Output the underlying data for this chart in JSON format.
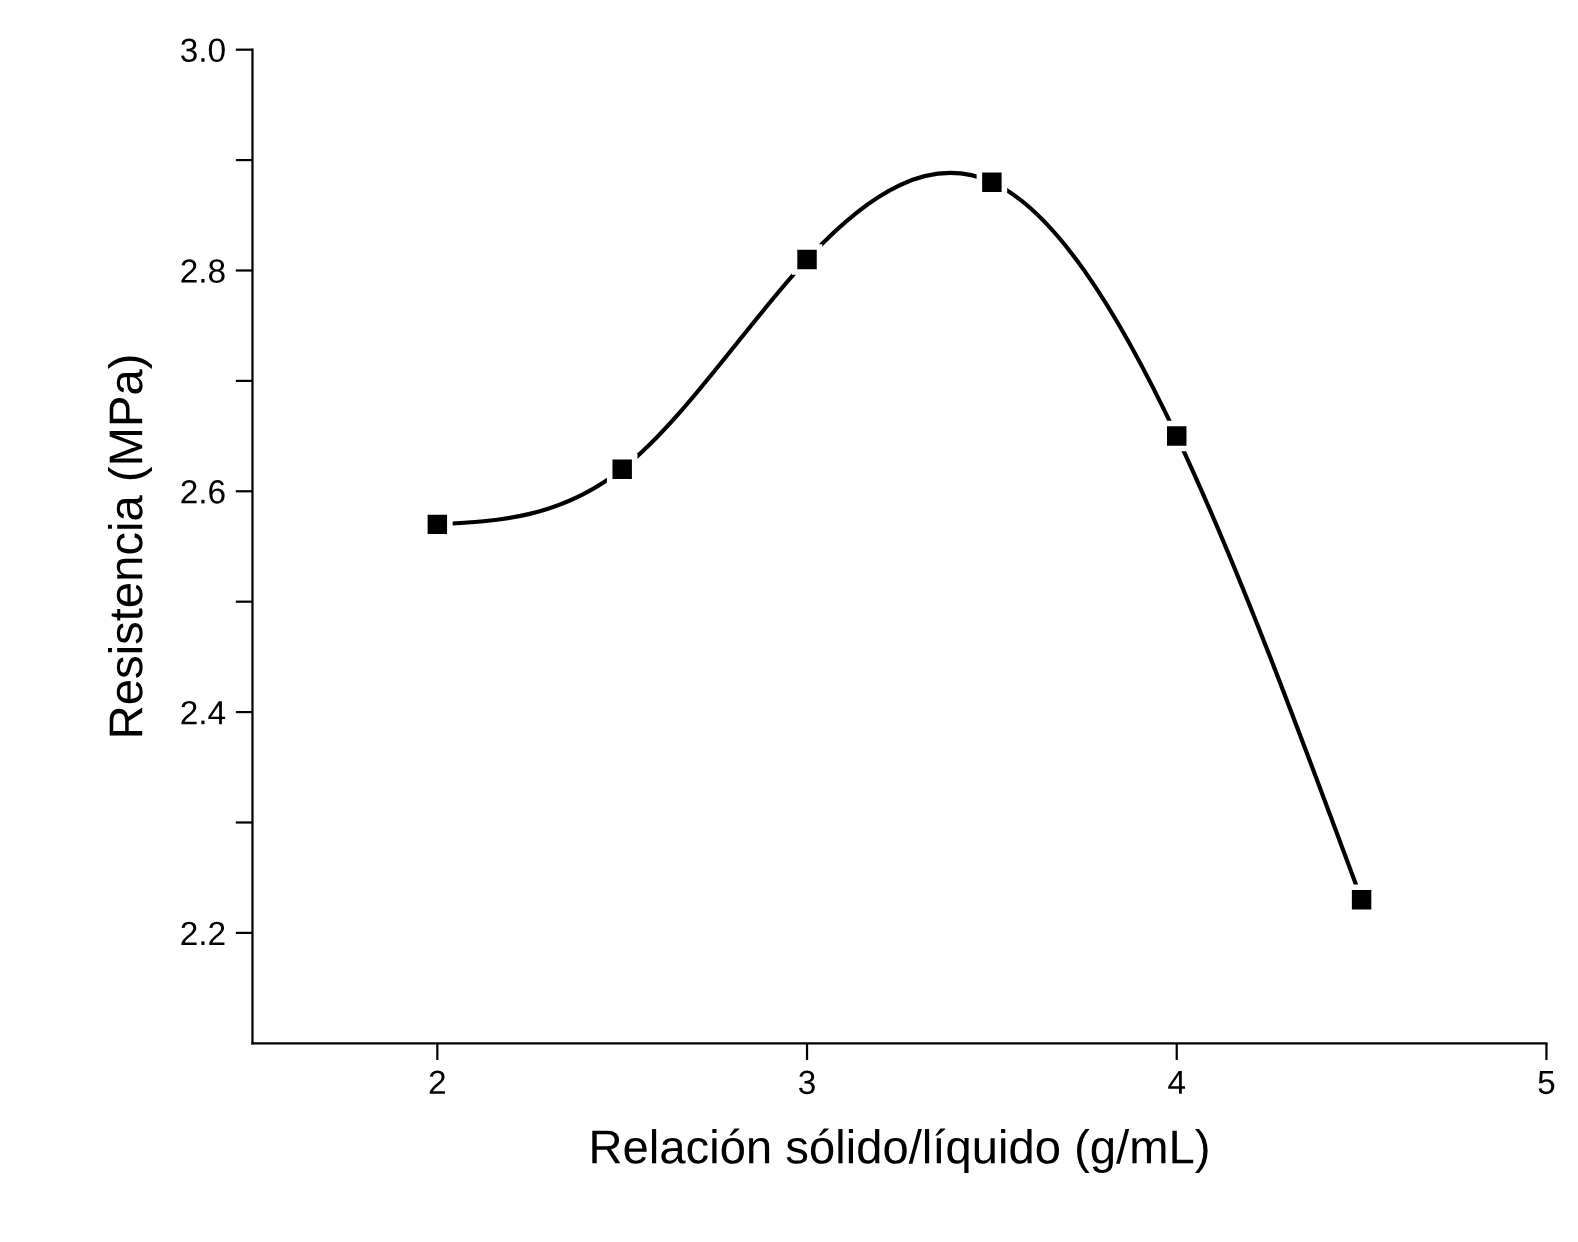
{
  "chart_data": {
    "type": "line",
    "xlabel": "Relación sólido/líquido (g/mL)",
    "ylabel": "Resistencia (MPa)",
    "x": [
      2,
      2.5,
      3,
      3.5,
      4,
      4.5
    ],
    "series": [
      {
        "color": "#000000",
        "values": [
          2.57,
          2.62,
          2.81,
          2.88,
          2.65,
          2.23
        ]
      }
    ],
    "marker": "square",
    "line_style": "solid",
    "grid": false,
    "legend": false,
    "xlim": [
      1.5,
      5
    ],
    "xticks": [
      2,
      3,
      4,
      5
    ],
    "ylim": [
      2.1,
      3.0
    ],
    "yticks": [
      2.2,
      {
        "value": 2.3,
        "label": null
      },
      2.4,
      {
        "value": 2.5,
        "label": null
      },
      2.6,
      {
        "value": 2.7,
        "label": null
      },
      2.8,
      {
        "value": 2.9,
        "label": null
      },
      {
        "value": 3.0,
        "label": "3.0"
      }
    ]
  }
}
